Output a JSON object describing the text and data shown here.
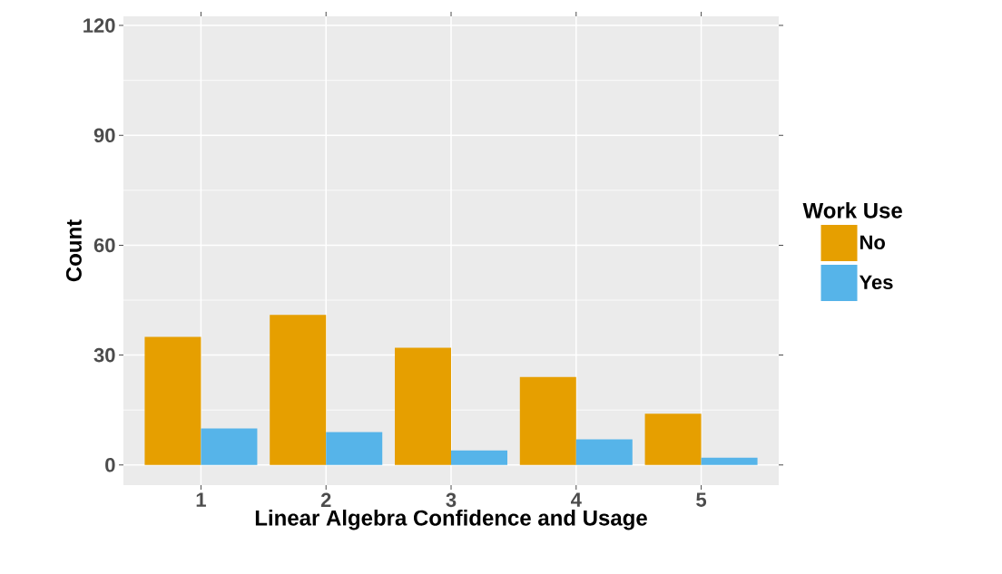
{
  "chart_data": {
    "type": "bar",
    "xlabel": "Linear Algebra Confidence and Usage",
    "ylabel": "Count",
    "legend_title": "Work Use",
    "categories": [
      "1",
      "2",
      "3",
      "4",
      "5"
    ],
    "series": [
      {
        "name": "No",
        "color": "#e69f00",
        "values": [
          35,
          41,
          32,
          24,
          14
        ]
      },
      {
        "name": "Yes",
        "color": "#56b4e9",
        "values": [
          10,
          9,
          4,
          7,
          2
        ]
      }
    ],
    "ylim": [
      -5.5,
      122.5
    ],
    "yticks": [
      0,
      30,
      60,
      90,
      120
    ],
    "grid": true,
    "legend": "right"
  }
}
